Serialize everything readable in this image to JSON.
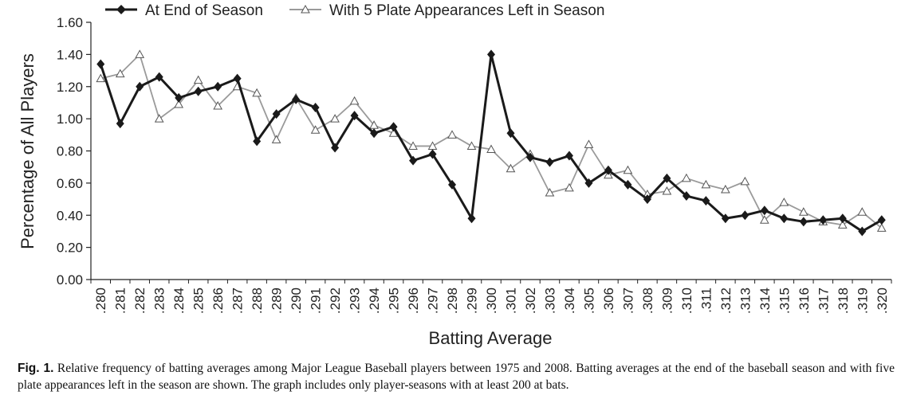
{
  "chart_data": {
    "type": "line",
    "xlabel": "Batting Average",
    "ylabel": "Percentage of All Players",
    "ylim": [
      0,
      1.6
    ],
    "yticks": [
      "0.00",
      "0.20",
      "0.40",
      "0.60",
      "0.80",
      "1.00",
      "1.20",
      "1.40",
      "1.60"
    ],
    "legend_position": "top",
    "categories": [
      ".280",
      ".281",
      ".282",
      ".283",
      ".284",
      ".285",
      ".286",
      ".287",
      ".288",
      ".289",
      ".290",
      ".291",
      ".292",
      ".293",
      ".294",
      ".295",
      ".296",
      ".297",
      ".298",
      ".299",
      ".300",
      ".301",
      ".302",
      ".303",
      ".304",
      ".305",
      ".306",
      ".307",
      ".308",
      ".309",
      ".310",
      ".311",
      ".312",
      ".313",
      ".314",
      ".315",
      ".316",
      ".317",
      ".318",
      ".319",
      ".320"
    ],
    "series": [
      {
        "name": "At End of Season",
        "color": "#1a1a1a",
        "marker": "diamond",
        "values": [
          1.34,
          0.97,
          1.2,
          1.26,
          1.13,
          1.17,
          1.2,
          1.25,
          0.86,
          1.03,
          1.12,
          1.07,
          0.82,
          1.02,
          0.91,
          0.95,
          0.74,
          0.78,
          0.59,
          0.38,
          1.4,
          0.91,
          0.76,
          0.73,
          0.77,
          0.6,
          0.68,
          0.59,
          0.5,
          0.63,
          0.52,
          0.49,
          0.38,
          0.4,
          0.43,
          0.38,
          0.36,
          0.37,
          0.38,
          0.3,
          0.37
        ]
      },
      {
        "name": "With 5 Plate Appearances Left in Season",
        "color": "#9a9a9a",
        "marker": "triangle",
        "values": [
          1.25,
          1.28,
          1.4,
          1.0,
          1.09,
          1.24,
          1.08,
          1.2,
          1.16,
          0.87,
          1.13,
          0.93,
          1.0,
          1.11,
          0.96,
          0.91,
          0.83,
          0.83,
          0.9,
          0.83,
          0.81,
          0.69,
          0.78,
          0.54,
          0.57,
          0.84,
          0.65,
          0.68,
          0.53,
          0.55,
          0.63,
          0.59,
          0.56,
          0.61,
          0.37,
          0.48,
          0.42,
          0.36,
          0.34,
          0.42,
          0.32
        ]
      }
    ]
  },
  "caption": {
    "label": "Fig. 1.",
    "text": "Relative frequency of batting averages among Major League Baseball players between 1975 and 2008. Batting averages at the end of the baseball season and with five plate appearances left in the season are shown. The graph includes only player-seasons with at least 200 at bats."
  }
}
